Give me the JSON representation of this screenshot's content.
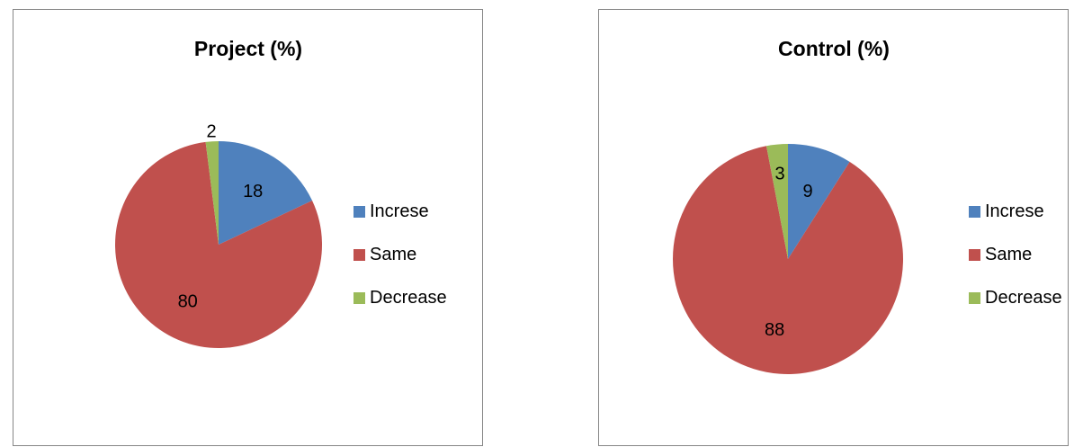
{
  "chart_data": [
    {
      "type": "pie",
      "title": "Project (%)",
      "categories": [
        "Increse",
        "Same",
        "Decrease"
      ],
      "values": [
        18,
        80,
        2
      ],
      "colors": [
        "#4f81bd",
        "#c0504d",
        "#9bbb59"
      ],
      "legend": "right"
    },
    {
      "type": "pie",
      "title": "Control (%)",
      "categories": [
        "Increse",
        "Same",
        "Decrease"
      ],
      "values": [
        9,
        88,
        3
      ],
      "colors": [
        "#4f81bd",
        "#c0504d",
        "#9bbb59"
      ],
      "legend": "right"
    }
  ]
}
